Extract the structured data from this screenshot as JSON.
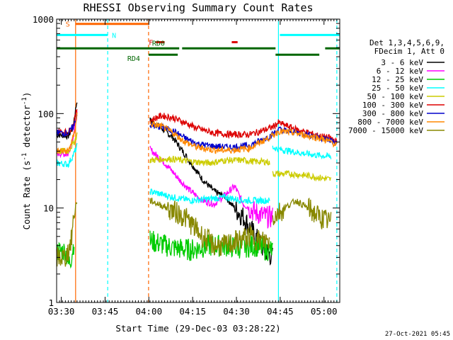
{
  "chart_data": {
    "type": "line",
    "title": "RHESSI Observing Summary Count Rates",
    "xlabel": "Start Time (29-Dec-03 03:28:22)",
    "ylabel_main": "Count Rate (s",
    "ylabel_sup": "-1",
    "ylabel_tail": " detector",
    "ylabel_sup2": "-1",
    "ylabel_end": ")",
    "x_unit": "minutes after 03:28:22",
    "xlim": [
      0,
      97
    ],
    "ylim": [
      1,
      1000
    ],
    "yscale": "log",
    "x_ticks": [
      {
        "label": "03:30",
        "x": 1.6
      },
      {
        "label": "03:45",
        "x": 16.6
      },
      {
        "label": "04:00",
        "x": 31.6
      },
      {
        "label": "04:15",
        "x": 46.6
      },
      {
        "label": "04:30",
        "x": 61.6
      },
      {
        "label": "04:45",
        "x": 76.6
      },
      {
        "label": "05:00",
        "x": 91.6
      }
    ],
    "y_ticks": [
      {
        "label": "1",
        "y": 1
      },
      {
        "label": "10",
        "y": 10
      },
      {
        "label": "100",
        "y": 100
      },
      {
        "label": "1000",
        "y": 1000
      }
    ],
    "legend": {
      "placement": "right",
      "header": [
        "Det 1,3,4,5,6,9,",
        "FDecim 1, Att 0"
      ]
    },
    "series": [
      {
        "name": "3 - 6 keV",
        "color": "#000000",
        "segments": [
          [
            [
              0,
              60
            ],
            [
              4,
              58
            ],
            [
              5.5,
              70
            ],
            [
              6.5,
              110
            ],
            [
              7,
              140
            ]
          ],
          [
            [
              32,
              85
            ],
            [
              36,
              70
            ],
            [
              40,
              55
            ],
            [
              46,
              30
            ],
            [
              50,
              20
            ],
            [
              54,
              15
            ],
            [
              58,
              13
            ],
            [
              61,
              10
            ],
            [
              64,
              8
            ],
            [
              68,
              5
            ],
            [
              70,
              4
            ],
            [
              74,
              3
            ]
          ]
        ]
      },
      {
        "name": "6 - 12 keV",
        "color": "#ff00ff",
        "segments": [
          [
            [
              0,
              38
            ],
            [
              4,
              37
            ],
            [
              5.5,
              55
            ],
            [
              7,
              100
            ]
          ],
          [
            [
              32,
              42
            ],
            [
              38,
              28
            ],
            [
              42,
              20
            ],
            [
              46,
              15
            ],
            [
              50,
              12
            ],
            [
              54,
              11
            ],
            [
              58,
              14
            ],
            [
              61,
              17
            ],
            [
              64,
              11
            ],
            [
              68,
              9
            ],
            [
              72,
              8
            ],
            [
              74,
              8
            ]
          ]
        ]
      },
      {
        "name": "12 - 25 keV",
        "color": "#00cc00",
        "segments": [
          [
            [
              0,
              3.5
            ],
            [
              3,
              3.5
            ],
            [
              4,
              2.5
            ],
            [
              5,
              3.0
            ],
            [
              6,
              4.5
            ]
          ],
          [
            [
              32,
              4.5
            ],
            [
              40,
              3.8
            ],
            [
              46,
              3.6
            ],
            [
              52,
              4.0
            ],
            [
              58,
              4.0
            ],
            [
              62,
              3.8
            ],
            [
              68,
              4.0
            ],
            [
              72,
              3.6
            ],
            [
              74,
              3.6
            ]
          ]
        ]
      },
      {
        "name": "25 - 50 keV",
        "color": "#00ffff",
        "segments": [
          [
            [
              0,
              30
            ],
            [
              4,
              29
            ],
            [
              6,
              38
            ],
            [
              7,
              45
            ]
          ],
          [
            [
              32,
              15
            ],
            [
              40,
              13
            ],
            [
              46,
              12
            ],
            [
              52,
              12.5
            ],
            [
              58,
              13
            ],
            [
              64,
              12
            ],
            [
              70,
              12
            ],
            [
              73,
              12
            ]
          ],
          [
            [
              74,
              44
            ],
            [
              76,
              42
            ],
            [
              80,
              40
            ],
            [
              84,
              38
            ],
            [
              90,
              36
            ],
            [
              94,
              35
            ]
          ]
        ]
      },
      {
        "name": "50 - 100 keV",
        "color": "#cccc00",
        "segments": [
          [
            [
              0,
              40
            ],
            [
              4,
              40
            ],
            [
              6,
              50
            ],
            [
              7,
              60
            ]
          ],
          [
            [
              32,
              32
            ],
            [
              36,
              33
            ],
            [
              40,
              33
            ],
            [
              46,
              31
            ],
            [
              52,
              30
            ],
            [
              58,
              32
            ],
            [
              64,
              32
            ],
            [
              68,
              31
            ],
            [
              72,
              31
            ],
            [
              73,
              30
            ]
          ],
          [
            [
              74,
              23
            ],
            [
              80,
              23
            ],
            [
              86,
              22
            ],
            [
              90,
              21
            ],
            [
              94,
              20
            ]
          ]
        ]
      },
      {
        "name": "100 - 300 keV",
        "color": "#dd0000",
        "segments": [
          [
            [
              0,
              65
            ],
            [
              4,
              63
            ],
            [
              6,
              80
            ],
            [
              7,
              115
            ]
          ],
          [
            [
              32,
              85
            ],
            [
              36,
              95
            ],
            [
              40,
              90
            ],
            [
              44,
              80
            ],
            [
              48,
              70
            ],
            [
              54,
              62
            ],
            [
              60,
              60
            ],
            [
              66,
              60
            ],
            [
              70,
              65
            ],
            [
              74,
              72
            ],
            [
              76,
              80
            ],
            [
              82,
              68
            ],
            [
              86,
              63
            ],
            [
              90,
              58
            ],
            [
              94,
              55
            ],
            [
              96,
              50
            ]
          ]
        ]
      },
      {
        "name": "300 - 800 keV",
        "color": "#0000cc",
        "segments": [
          [
            [
              0,
              63
            ],
            [
              4,
              62
            ],
            [
              6,
              75
            ],
            [
              7,
              100
            ]
          ],
          [
            [
              32,
              75
            ],
            [
              36,
              72
            ],
            [
              40,
              65
            ],
            [
              44,
              55
            ],
            [
              48,
              48
            ],
            [
              54,
              45
            ],
            [
              60,
              44
            ],
            [
              66,
              46
            ],
            [
              70,
              52
            ],
            [
              74,
              60
            ],
            [
              76,
              68
            ],
            [
              82,
              63
            ],
            [
              86,
              60
            ],
            [
              90,
              56
            ],
            [
              94,
              52
            ],
            [
              96,
              48
            ]
          ]
        ]
      },
      {
        "name": "800 - 7000 keV",
        "color": "#ff8800",
        "segments": [
          [
            [
              0,
              40
            ],
            [
              4,
              40
            ],
            [
              6,
              60
            ],
            [
              7,
              100
            ]
          ],
          [
            [
              32,
              78
            ],
            [
              36,
              73
            ],
            [
              40,
              62
            ],
            [
              44,
              50
            ],
            [
              48,
              44
            ],
            [
              54,
              41
            ],
            [
              60,
              41
            ],
            [
              66,
              43
            ],
            [
              70,
              50
            ],
            [
              74,
              58
            ],
            [
              76,
              65
            ],
            [
              82,
              62
            ],
            [
              86,
              58
            ],
            [
              90,
              55
            ],
            [
              94,
              50
            ],
            [
              96,
              46
            ]
          ]
        ]
      },
      {
        "name": "7000 - 15000 keV",
        "color": "#888800",
        "segments": [
          [
            [
              0,
              3.0
            ],
            [
              3,
              3.0
            ],
            [
              4,
              3.5
            ],
            [
              5,
              4.5
            ],
            [
              6,
              9
            ],
            [
              7,
              12
            ]
          ],
          [
            [
              32,
              12
            ],
            [
              38,
              10
            ],
            [
              44,
              8
            ],
            [
              50,
              5
            ],
            [
              54,
              4
            ],
            [
              58,
              4
            ],
            [
              62,
              4.5
            ],
            [
              66,
              5
            ],
            [
              70,
              4.5
            ],
            [
              73,
              4.5
            ]
          ],
          [
            [
              74,
              8
            ],
            [
              78,
              10
            ],
            [
              82,
              12
            ],
            [
              86,
              10
            ],
            [
              90,
              8
            ],
            [
              94,
              7
            ]
          ]
        ]
      }
    ],
    "flags": [
      {
        "label": "S",
        "color": "#ff6600",
        "level": 890,
        "spans": [
          [
            6.5,
            31.5
          ]
        ]
      },
      {
        "label": "N",
        "color": "#00ffff",
        "level": 680,
        "spans": [
          [
            0,
            17.5
          ],
          [
            76.5,
            97
          ]
        ]
      },
      {
        "label": "F",
        "color": "#dd0000",
        "level": 570,
        "spans": [
          [
            34,
            37
          ],
          [
            60,
            62
          ]
        ]
      },
      {
        "label": "RD0",
        "color": "#006600",
        "level": 490,
        "spans": [
          [
            0,
            42
          ],
          [
            43,
            75
          ],
          [
            92,
            97
          ]
        ]
      },
      {
        "label": "RD4",
        "color": "#006600",
        "level": 420,
        "spans": [
          [
            31.5,
            41.5
          ],
          [
            75,
            90
          ]
        ]
      }
    ],
    "vlines": [
      {
        "x": 6.5,
        "color": "#ff6600",
        "style": "solid"
      },
      {
        "x": 17.5,
        "color": "#00ffff",
        "style": "dashed"
      },
      {
        "x": 31.5,
        "color": "#ff6600",
        "style": "dashed"
      },
      {
        "x": 76.0,
        "color": "#00ffff",
        "style": "solid"
      },
      {
        "x": 96.0,
        "color": "#00ffff",
        "style": "dashed"
      }
    ],
    "annotation": "27-Oct-2021 05:45"
  }
}
